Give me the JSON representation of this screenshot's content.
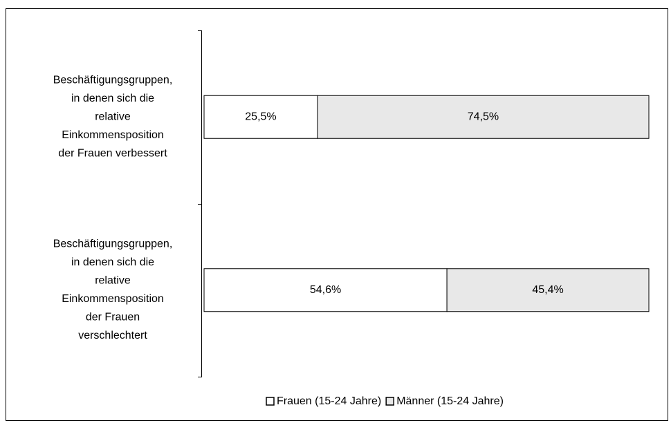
{
  "chart_data": {
    "type": "stacked-bar-horizontal",
    "categories": [
      "Beschäftigungsgruppen, in denen sich die relative Einkommensposition der Frauen verbessert",
      "Beschäftigungsgruppen, in denen sich die relative Einkommensposition der Frauen verschlechtert"
    ],
    "series": [
      {
        "name": "Frauen (15-24 Jahre)",
        "color": "#ffffff",
        "values": [
          25.5,
          54.6
        ],
        "value_labels": [
          "25,5%",
          "54,6%"
        ]
      },
      {
        "name": "Männer (15-24 Jahre)",
        "color": "#e8e8e8",
        "values": [
          74.5,
          45.4
        ],
        "value_labels": [
          "74,5%",
          "45,4%"
        ]
      }
    ],
    "xlim": [
      0,
      100
    ],
    "legend": "bottom"
  }
}
